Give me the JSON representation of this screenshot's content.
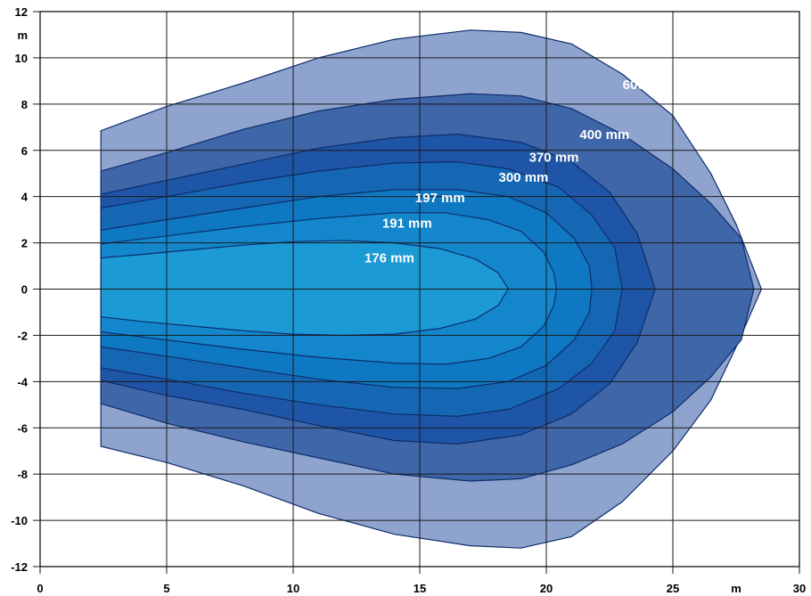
{
  "chart_data": {
    "type": "area",
    "title": "",
    "xlabel": "",
    "ylabel": "",
    "x_unit": "m",
    "y_unit": "m",
    "xlim": [
      0,
      30
    ],
    "ylim": [
      -12,
      12
    ],
    "x_ticks": [
      0,
      5,
      10,
      15,
      20,
      25,
      30
    ],
    "y_ticks": [
      -12,
      -10,
      -8,
      -6,
      -4,
      -2,
      0,
      2,
      4,
      6,
      8,
      10,
      12
    ],
    "grid": true,
    "series": [
      {
        "name": "600 mm",
        "color": "#8fa3cf",
        "upper": [
          [
            2.4,
            6.85
          ],
          [
            5,
            7.9
          ],
          [
            8,
            8.9
          ],
          [
            11,
            10.0
          ],
          [
            14,
            10.8
          ],
          [
            17,
            11.2
          ],
          [
            19,
            11.1
          ],
          [
            21,
            10.6
          ],
          [
            23,
            9.3
          ],
          [
            25,
            7.5
          ],
          [
            26.5,
            5.0
          ],
          [
            27.5,
            2.8
          ],
          [
            28.5,
            0
          ]
        ],
        "lower": [
          [
            28.5,
            0
          ],
          [
            27.5,
            -2.5
          ],
          [
            26.5,
            -4.8
          ],
          [
            25,
            -7.0
          ],
          [
            23,
            -9.2
          ],
          [
            21,
            -10.7
          ],
          [
            19,
            -11.2
          ],
          [
            17,
            -11.1
          ],
          [
            14,
            -10.6
          ],
          [
            11,
            -9.7
          ],
          [
            8,
            -8.5
          ],
          [
            5,
            -7.5
          ],
          [
            2.4,
            -6.8
          ]
        ]
      },
      {
        "name": "400 mm",
        "color": "#3f66a8",
        "upper": [
          [
            2.4,
            5.1
          ],
          [
            5,
            5.9
          ],
          [
            8,
            6.9
          ],
          [
            11,
            7.7
          ],
          [
            14,
            8.2
          ],
          [
            17,
            8.45
          ],
          [
            19,
            8.35
          ],
          [
            21,
            7.8
          ],
          [
            23,
            6.7
          ],
          [
            25,
            5.2
          ],
          [
            26.5,
            3.7
          ],
          [
            27.7,
            2.2
          ],
          [
            28.2,
            0
          ]
        ],
        "lower": [
          [
            28.2,
            0
          ],
          [
            27.7,
            -2.2
          ],
          [
            26.5,
            -3.8
          ],
          [
            25,
            -5.3
          ],
          [
            23,
            -6.7
          ],
          [
            21,
            -7.6
          ],
          [
            19,
            -8.2
          ],
          [
            17,
            -8.3
          ],
          [
            14,
            -8.0
          ],
          [
            11,
            -7.3
          ],
          [
            8,
            -6.6
          ],
          [
            5,
            -5.8
          ],
          [
            2.4,
            -4.95
          ]
        ]
      },
      {
        "name": "370 mm",
        "color": "#1f55a6",
        "upper": [
          [
            2.4,
            4.1
          ],
          [
            5,
            4.7
          ],
          [
            8,
            5.4
          ],
          [
            11,
            6.1
          ],
          [
            14,
            6.55
          ],
          [
            16.5,
            6.7
          ],
          [
            19,
            6.35
          ],
          [
            21,
            5.5
          ],
          [
            22.5,
            4.2
          ],
          [
            23.6,
            2.4
          ],
          [
            24.3,
            0
          ]
        ],
        "lower": [
          [
            24.3,
            0
          ],
          [
            23.6,
            -2.3
          ],
          [
            22.5,
            -4.1
          ],
          [
            21,
            -5.4
          ],
          [
            19,
            -6.3
          ],
          [
            16.5,
            -6.7
          ],
          [
            14,
            -6.55
          ],
          [
            11,
            -5.9
          ],
          [
            8,
            -5.2
          ],
          [
            5,
            -4.6
          ],
          [
            2.4,
            -3.95
          ]
        ]
      },
      {
        "name": "300 mm",
        "color": "#1667b3",
        "upper": [
          [
            2.4,
            3.5
          ],
          [
            5,
            4.0
          ],
          [
            8,
            4.6
          ],
          [
            11,
            5.1
          ],
          [
            14,
            5.45
          ],
          [
            16.5,
            5.5
          ],
          [
            18.5,
            5.2
          ],
          [
            20.5,
            4.4
          ],
          [
            21.8,
            3.2
          ],
          [
            22.7,
            1.8
          ],
          [
            23.0,
            0
          ]
        ],
        "lower": [
          [
            23.0,
            0
          ],
          [
            22.7,
            -1.8
          ],
          [
            21.8,
            -3.2
          ],
          [
            20.5,
            -4.3
          ],
          [
            18.5,
            -5.2
          ],
          [
            16.5,
            -5.5
          ],
          [
            14,
            -5.4
          ],
          [
            11,
            -5.0
          ],
          [
            8,
            -4.5
          ],
          [
            5,
            -3.9
          ],
          [
            2.4,
            -3.4
          ]
        ]
      },
      {
        "name": "197 mm",
        "color": "#0f78c2",
        "upper": [
          [
            2.4,
            2.55
          ],
          [
            5,
            3.0
          ],
          [
            8,
            3.5
          ],
          [
            11,
            4.0
          ],
          [
            14,
            4.3
          ],
          [
            16.5,
            4.3
          ],
          [
            18.5,
            4.0
          ],
          [
            20,
            3.3
          ],
          [
            21.1,
            2.2
          ],
          [
            21.7,
            1.0
          ],
          [
            21.8,
            0
          ]
        ],
        "lower": [
          [
            21.8,
            0
          ],
          [
            21.7,
            -1.0
          ],
          [
            21.1,
            -2.2
          ],
          [
            20,
            -3.3
          ],
          [
            18.5,
            -4.0
          ],
          [
            16.5,
            -4.3
          ],
          [
            14,
            -4.25
          ],
          [
            11,
            -3.9
          ],
          [
            8,
            -3.4
          ],
          [
            5,
            -2.9
          ],
          [
            2.4,
            -2.5
          ]
        ]
      },
      {
        "name": "191 mm",
        "color": "#1487cc",
        "upper": [
          [
            2.4,
            1.95
          ],
          [
            5,
            2.3
          ],
          [
            8,
            2.7
          ],
          [
            11,
            3.05
          ],
          [
            14,
            3.3
          ],
          [
            16,
            3.3
          ],
          [
            17.7,
            3.0
          ],
          [
            19,
            2.5
          ],
          [
            19.9,
            1.6
          ],
          [
            20.3,
            0.7
          ],
          [
            20.4,
            0
          ]
        ],
        "lower": [
          [
            20.4,
            0
          ],
          [
            20.3,
            -0.7
          ],
          [
            19.9,
            -1.6
          ],
          [
            19,
            -2.5
          ],
          [
            17.7,
            -3.0
          ],
          [
            16,
            -3.25
          ],
          [
            14,
            -3.2
          ],
          [
            11,
            -2.95
          ],
          [
            8,
            -2.6
          ],
          [
            5,
            -2.2
          ],
          [
            2.4,
            -1.85
          ]
        ]
      },
      {
        "name": "176 mm",
        "color": "#1c9ad6",
        "upper": [
          [
            2.4,
            1.35
          ],
          [
            4,
            1.5
          ],
          [
            6,
            1.7
          ],
          [
            8,
            1.9
          ],
          [
            10,
            2.05
          ],
          [
            12,
            2.1
          ],
          [
            14,
            2.0
          ],
          [
            15.8,
            1.75
          ],
          [
            17.2,
            1.3
          ],
          [
            18.1,
            0.7
          ],
          [
            18.5,
            0
          ]
        ],
        "lower": [
          [
            18.5,
            0
          ],
          [
            18.1,
            -0.7
          ],
          [
            17.2,
            -1.3
          ],
          [
            15.8,
            -1.7
          ],
          [
            14,
            -1.95
          ],
          [
            12,
            -2.0
          ],
          [
            10,
            -1.95
          ],
          [
            8,
            -1.8
          ],
          [
            6,
            -1.6
          ],
          [
            4,
            -1.4
          ],
          [
            2.4,
            -1.2
          ]
        ]
      }
    ],
    "annotations": [
      {
        "text": "600 mm",
        "x": 24.0,
        "y": 8.65
      },
      {
        "text": "400 mm",
        "x": 22.3,
        "y": 6.5
      },
      {
        "text": "370 mm",
        "x": 20.3,
        "y": 5.5
      },
      {
        "text": "300 mm",
        "x": 19.1,
        "y": 4.65
      },
      {
        "text": "197 mm",
        "x": 15.8,
        "y": 3.75
      },
      {
        "text": "191 mm",
        "x": 14.5,
        "y": 2.65
      },
      {
        "text": "176 mm",
        "x": 13.8,
        "y": 1.15
      }
    ]
  }
}
